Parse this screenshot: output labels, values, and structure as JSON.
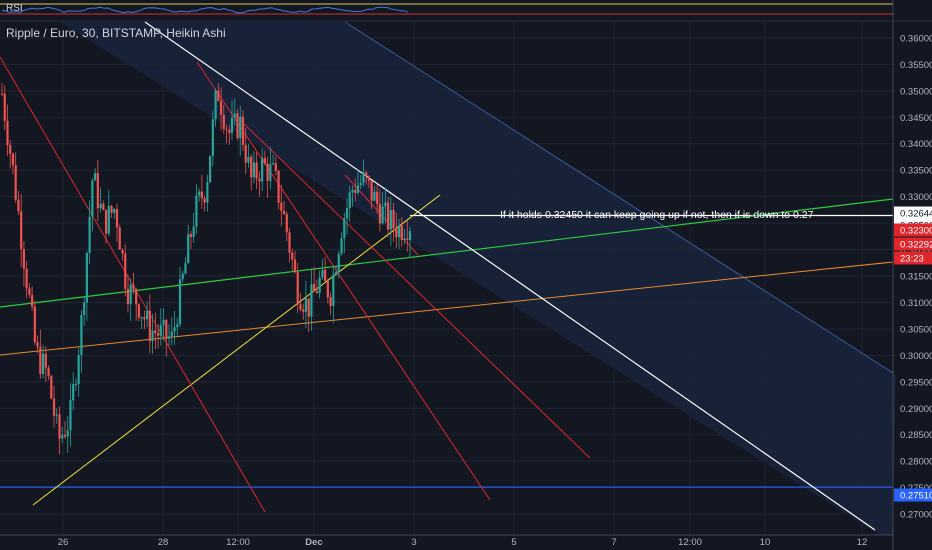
{
  "header": {
    "title": "Ripple / Euro, 30, BITSTAMP, Heikin Ashi",
    "indicator_label": "RSI"
  },
  "annotation": "If it holds 0.32450 it can keep going up if not, then if is down to 0.27",
  "colors": {
    "background": "#131722",
    "shaded_channel": "#1b2a4a",
    "up_candle": "#26a69a",
    "down_candle": "#ef5350",
    "white_line": "#ffffff",
    "red_line": "#e0262b",
    "green_line": "#2ecc40",
    "orange_line": "#e8892c",
    "yellow_line": "#f2e33a",
    "blue_line": "#2962ff",
    "rsi_line": "#3f78e0"
  },
  "chart_data": {
    "type": "candlestick",
    "style": "Heikin Ashi",
    "symbol": "Ripple / Euro",
    "interval": "30",
    "exchange": "BITSTAMP",
    "x_tick_labels": [
      "26",
      "28",
      "12:00",
      "Dec",
      "3",
      "5",
      "7",
      "12:00",
      "10",
      "12"
    ],
    "y_ticks": [
      "0.36000",
      "0.35500",
      "0.35000",
      "0.34500",
      "0.34000",
      "0.33500",
      "0.33000",
      "0.32500",
      "0.32000",
      "0.31500",
      "0.31000",
      "0.30500",
      "0.30000",
      "0.29500",
      "0.29000",
      "0.28500",
      "0.28000",
      "0.27500",
      "0.27000"
    ],
    "ylim": [
      0.2685,
      0.3615
    ],
    "price_badges": [
      {
        "label": "0.32644",
        "value": 0.32644,
        "style": "white"
      },
      {
        "label": "0.32500",
        "value": 0.325,
        "style": "white"
      },
      {
        "label": "0.32300",
        "value": 0.323,
        "style": "red"
      },
      {
        "label": "0.32292",
        "value": 0.32292,
        "style": "red"
      },
      {
        "label": "23:23",
        "value": 0.3202,
        "style": "red"
      },
      {
        "label": "0.27510",
        "value": 0.2751,
        "style": "blue"
      }
    ],
    "horizontal_levels": [
      {
        "value": 0.32644,
        "color": "white"
      },
      {
        "value": 0.2751,
        "color": "blue"
      }
    ],
    "close_path_approx": [
      0.3495,
      0.3345,
      0.3175,
      0.3005,
      0.2965,
      0.284,
      0.288,
      0.306,
      0.334,
      0.325,
      0.328,
      0.313,
      0.31,
      0.305,
      0.304,
      0.303,
      0.315,
      0.327,
      0.332,
      0.3505,
      0.342,
      0.344,
      0.333,
      0.336,
      0.334,
      0.325,
      0.313,
      0.309,
      0.314,
      0.312,
      0.325,
      0.332,
      0.333,
      0.329,
      0.3255,
      0.324,
      0.325
    ]
  }
}
